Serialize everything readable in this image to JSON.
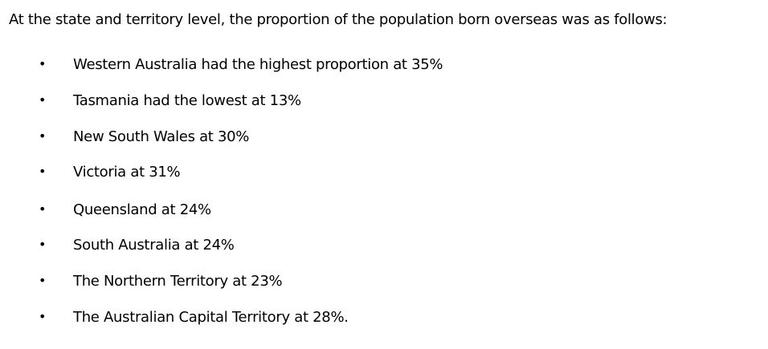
{
  "intro": "At the state and territory level, the proportion of the population born overseas was as follows:",
  "items": [
    "Western Australia had the highest proportion at 35%",
    "Tasmania had the lowest at 13%",
    "New South Wales at 30%",
    "Victoria at 31%",
    "Queensland at 24%",
    "South Australia at 24%",
    "The Northern Territory at 23%",
    "The Australian Capital Territory at 28%."
  ],
  "bullet": "•"
}
